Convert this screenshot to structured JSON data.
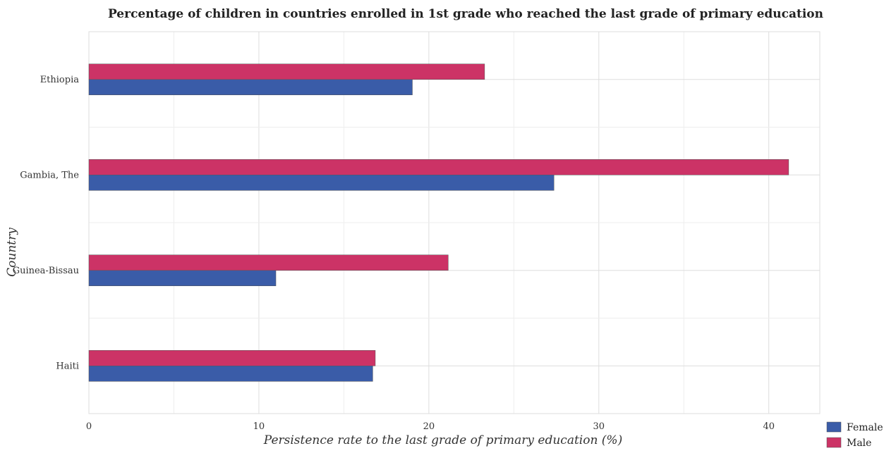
{
  "chart_data": {
    "type": "bar",
    "orientation": "horizontal",
    "title": "Percentage of children in countries enrolled in 1st grade who reached the last grade of primary education",
    "xlabel": "Persistence rate to the last grade of primary education (%)",
    "ylabel": "Country",
    "categories": [
      "Ethiopia",
      "Gambia, The",
      "Guinea-Bissau",
      "Haiti"
    ],
    "series": [
      {
        "name": "Female",
        "color": "#3a5ca8",
        "values": [
          19.03,
          27.36,
          11.0,
          16.7
        ]
      },
      {
        "name": "Male",
        "color": "#cc3366",
        "values": [
          23.28,
          41.17,
          21.14,
          16.85
        ]
      }
    ],
    "xlim": [
      0,
      43
    ],
    "xticks": [
      0,
      10,
      20,
      30,
      40
    ],
    "grid": true,
    "legend_position": "bottom-right"
  }
}
